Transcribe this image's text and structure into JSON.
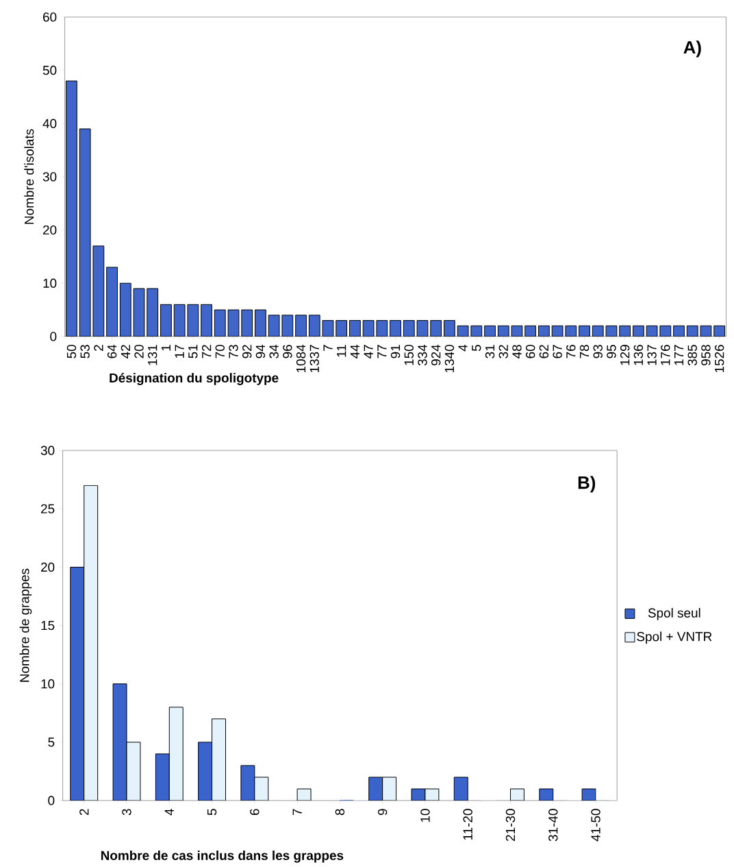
{
  "chart_data": [
    {
      "type": "bar",
      "xlabel": "Désignation du spoligotype",
      "ylabel": "Nombre d'isolats",
      "annotations": [
        "A)"
      ],
      "categories": [
        "50",
        "53",
        "2",
        "64",
        "42",
        "20",
        "131",
        "1",
        "17",
        "51",
        "72",
        "70",
        "73",
        "92",
        "94",
        "34",
        "96",
        "1084",
        "1337",
        "7",
        "11",
        "44",
        "47",
        "77",
        "91",
        "150",
        "334",
        "924",
        "1340",
        "4",
        "5",
        "31",
        "32",
        "48",
        "60",
        "62",
        "67",
        "76",
        "78",
        "93",
        "95",
        "129",
        "136",
        "137",
        "176",
        "177",
        "385",
        "958",
        "1526"
      ],
      "values": [
        48,
        39,
        17,
        13,
        10,
        9,
        9,
        6,
        6,
        6,
        6,
        5,
        5,
        5,
        5,
        4,
        4,
        4,
        4,
        3,
        3,
        3,
        3,
        3,
        3,
        3,
        3,
        3,
        3,
        2,
        2,
        2,
        2,
        2,
        2,
        2,
        2,
        2,
        2,
        2,
        2,
        2,
        2,
        2,
        2,
        2,
        2,
        2,
        2
      ],
      "color": "#3f66c8",
      "ylim": [
        0,
        60
      ],
      "yticks": [
        0,
        10,
        20,
        30,
        40,
        50,
        60
      ]
    },
    {
      "type": "bar",
      "xlabel": "Nombre de cas inclus dans les grappes",
      "ylabel": "Nombre de grappes",
      "annotations": [
        "B)"
      ],
      "categories": [
        "2",
        "3",
        "4",
        "5",
        "6",
        "7",
        "8",
        "9",
        "10",
        "11-20",
        "21-30",
        "31-40",
        "41-50"
      ],
      "series": [
        {
          "name": "Spol seul",
          "color": "#3a63cc",
          "values": [
            20,
            10,
            4,
            5,
            3,
            0,
            0,
            2,
            1,
            2,
            0,
            1,
            1
          ]
        },
        {
          "name": "Spol + VNTR",
          "color": "#e3f2fb",
          "values": [
            27,
            5,
            8,
            7,
            2,
            1,
            0,
            2,
            1,
            0,
            1,
            0,
            0
          ]
        }
      ],
      "ylim": [
        0,
        30
      ],
      "yticks": [
        0,
        5,
        10,
        15,
        20,
        25,
        30
      ],
      "legend": "right"
    }
  ]
}
